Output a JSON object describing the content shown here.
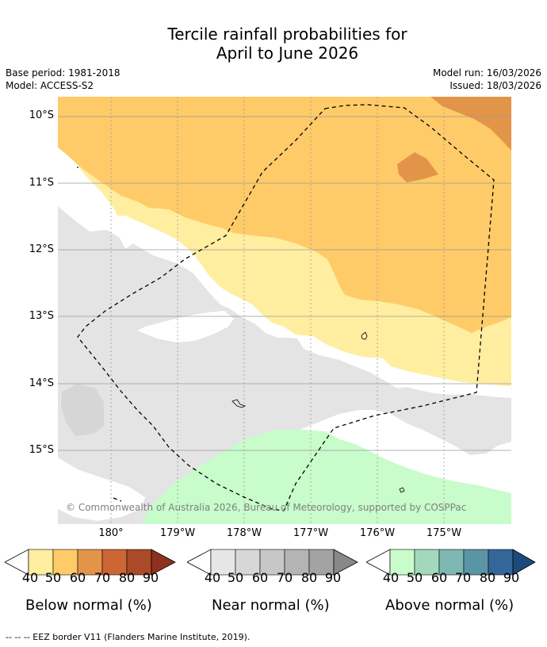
{
  "title_line1": "Tercile rainfall probabilities for",
  "title_line2": "April to June 2026",
  "base_period": "Base period: 1981-2018",
  "model": "Model: ACCESS-S2",
  "model_run": "Model run: 16/03/2026",
  "issued": "Issued: 18/03/2026",
  "lat_labels": [
    "10°S",
    "11°S",
    "12°S",
    "13°S",
    "14°S",
    "15°S"
  ],
  "lon_labels": [
    "180°",
    "179°W",
    "178°W",
    "177°W",
    "176°W",
    "175°W"
  ],
  "copyright": "© Commonwealth of Australia 2026, Bureau of Meteorology, supported by COSPPac",
  "legends": [
    {
      "title": "Below normal (%)",
      "ticks": [
        "40",
        "50",
        "60",
        "70",
        "80",
        "90"
      ],
      "colors": [
        "#ffeea0",
        "#fecb68",
        "#e29548",
        "#cd6534",
        "#ab4a28",
        "#8e3020"
      ]
    },
    {
      "title": "Near normal (%)",
      "ticks": [
        "40",
        "50",
        "60",
        "70",
        "80",
        "90"
      ],
      "colors": [
        "#e6e6e6",
        "#d7d7d7",
        "#c7c7c7",
        "#b4b4b4",
        "#a3a3a3",
        "#888888"
      ]
    },
    {
      "title": "Above normal (%)",
      "ticks": [
        "40",
        "50",
        "60",
        "70",
        "80",
        "90"
      ],
      "colors": [
        "#c8fccb",
        "#a4d8bd",
        "#7fb8b2",
        "#5a95a5",
        "#346699",
        "#1d4a7b"
      ]
    }
  ],
  "footnote": "-- -- -- EEZ border V11 (Flanders Marine Institute, 2019).",
  "colors": {
    "below_40_50": "#ffeea0",
    "below_50_60": "#fecb68",
    "below_60_70": "#e29548",
    "near_40_50": "#e4e4e4",
    "above_40_50": "#c8fccb",
    "grid": "#9a9a9a"
  }
}
